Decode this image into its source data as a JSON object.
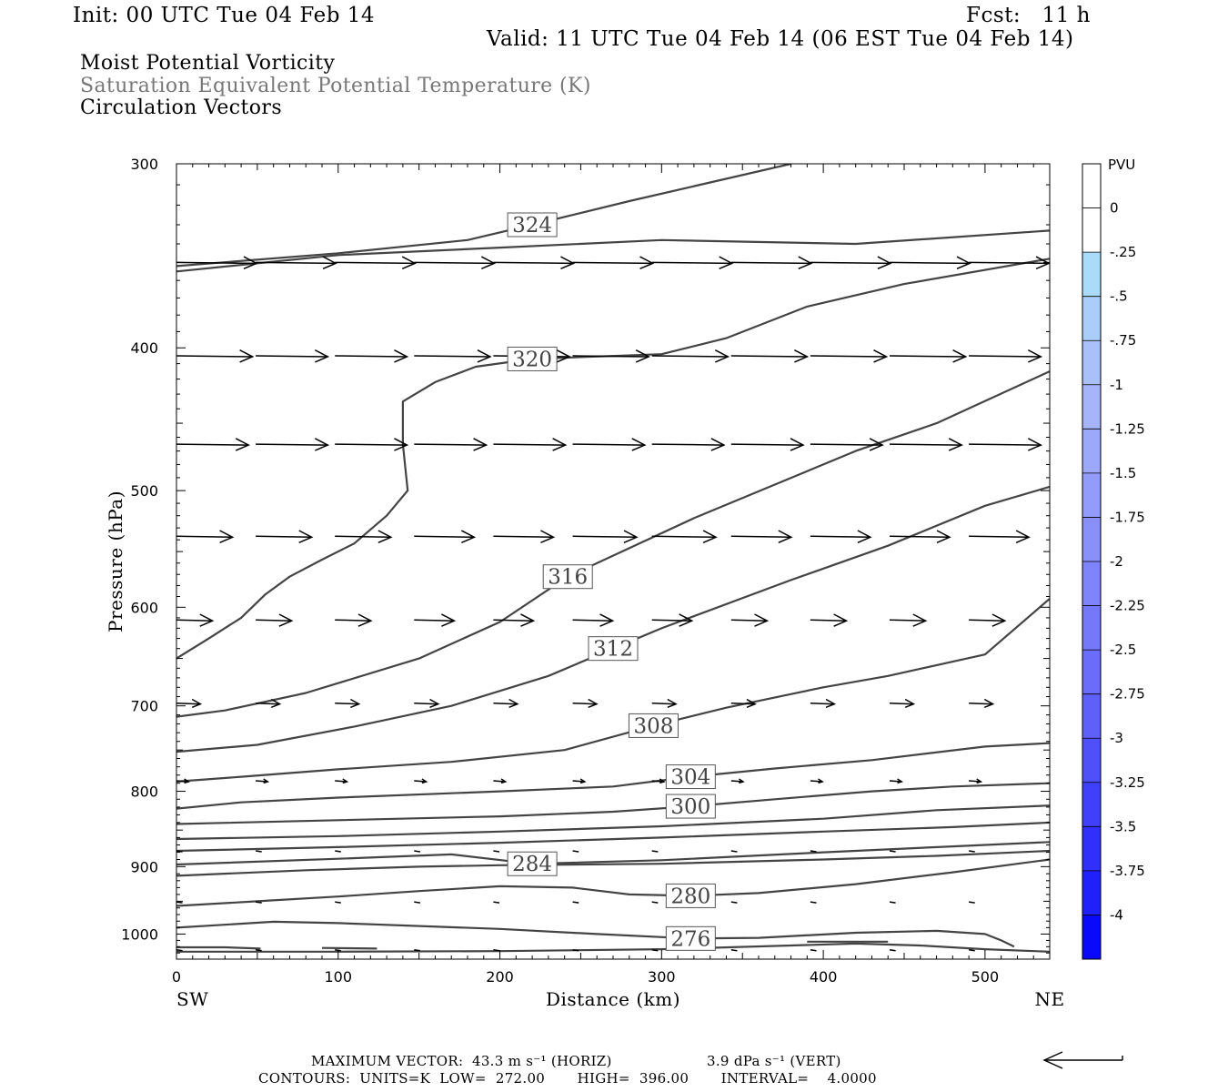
{
  "header": {
    "init": "Init: 00 UTC Tue 04 Feb 14",
    "fcst": "Fcst:   11 h",
    "valid": "Valid: 11 UTC Tue 04 Feb 14 (06 EST Tue 04 Feb 14)",
    "field1": "Moist Potential Vorticity",
    "field2": "Saturation Equivalent Potential Temperature (K)",
    "field3": "Circulation Vectors"
  },
  "footer": {
    "max_vector_label": "MAXIMUM VECTOR:",
    "max_vector_horiz": "43.3 m s⁻¹ (HORIZ)",
    "max_vector_vert": "3.9 dPa s⁻¹ (VERT)",
    "contours_line": "CONTOURS:  UNITS=K  LOW=  272.00       HIGH=  396.00       INTERVAL=    4.0000"
  },
  "colors": {
    "contour": "#444444",
    "arrow": "#000000",
    "frame": "#000000"
  },
  "chart_data": {
    "type": "line",
    "title": "",
    "xlabel": "Distance (km)",
    "ylabel": "Pressure (hPa)",
    "xlim": [
      0,
      540
    ],
    "ylim": [
      1040,
      300
    ],
    "y_scale": "log",
    "x_ticks": [
      0,
      100,
      200,
      300,
      400,
      500
    ],
    "y_ticks": [
      300,
      400,
      500,
      600,
      700,
      800,
      900,
      1000
    ],
    "x_end_labels": {
      "left": "SW",
      "right": "NE"
    },
    "colorbar": {
      "unit": "PVU",
      "labels": [
        "0",
        "-.25",
        "-.5",
        "-.75",
        "-1",
        "-1.25",
        "-1.5",
        "-1.75",
        "-2",
        "-2.25",
        "-2.5",
        "-2.75",
        "-3",
        "-3.25",
        "-3.5",
        "-3.75",
        "-4"
      ],
      "colors": [
        "#ffffff",
        "#ffffff",
        "#aadcfa",
        "#aacdfa",
        "#aac0fa",
        "#a6b4fa",
        "#9ca8fa",
        "#939cfa",
        "#8a90fa",
        "#8084fa",
        "#7678fa",
        "#6b6cfa",
        "#5f5ffa",
        "#5050fa",
        "#4040fa",
        "#3030fa",
        "#2020fa",
        "#0a0afa"
      ]
    },
    "contours": [
      {
        "label": "324",
        "label_at": [
          220,
          330
        ],
        "points": [
          [
            0,
            352
          ],
          [
            100,
            345
          ],
          [
            180,
            338
          ],
          [
            220,
            330
          ],
          [
            280,
            318
          ],
          [
            380,
            300
          ]
        ]
      },
      {
        "label": "",
        "label_at": null,
        "points": [
          [
            0,
            355
          ],
          [
            100,
            346
          ],
          [
            200,
            342
          ],
          [
            300,
            338
          ],
          [
            420,
            340
          ],
          [
            540,
            333
          ]
        ]
      },
      {
        "label": "320",
        "label_at": [
          220,
          407
        ],
        "points": [
          [
            0,
            650
          ],
          [
            20,
            630
          ],
          [
            40,
            610
          ],
          [
            55,
            588
          ],
          [
            70,
            572
          ],
          [
            90,
            557
          ],
          [
            110,
            543
          ],
          [
            130,
            520
          ],
          [
            143,
            500
          ],
          [
            140,
            465
          ],
          [
            140,
            435
          ],
          [
            160,
            422
          ],
          [
            185,
            412
          ],
          [
            220,
            407
          ],
          [
            300,
            404
          ],
          [
            340,
            394
          ],
          [
            390,
            375
          ],
          [
            450,
            362
          ],
          [
            540,
            348
          ]
        ]
      },
      {
        "label": "316",
        "label_at": [
          242,
          572
        ],
        "points": [
          [
            0,
            712
          ],
          [
            30,
            705
          ],
          [
            80,
            686
          ],
          [
            150,
            650
          ],
          [
            200,
            614
          ],
          [
            242,
            572
          ],
          [
            320,
            522
          ],
          [
            420,
            470
          ],
          [
            470,
            450
          ],
          [
            540,
            415
          ]
        ]
      },
      {
        "label": "312",
        "label_at": [
          270,
          640
        ],
        "points": [
          [
            0,
            752
          ],
          [
            50,
            744
          ],
          [
            110,
            723
          ],
          [
            170,
            700
          ],
          [
            230,
            668
          ],
          [
            270,
            640
          ],
          [
            300,
            620
          ],
          [
            380,
            575
          ],
          [
            440,
            545
          ],
          [
            500,
            512
          ],
          [
            540,
            497
          ]
        ]
      },
      {
        "label": "308",
        "label_at": [
          295,
          722
        ],
        "points": [
          [
            0,
            788
          ],
          [
            40,
            782
          ],
          [
            100,
            773
          ],
          [
            170,
            764
          ],
          [
            240,
            750
          ],
          [
            295,
            722
          ],
          [
            340,
            702
          ],
          [
            400,
            680
          ],
          [
            440,
            668
          ],
          [
            500,
            646
          ],
          [
            540,
            592
          ]
        ]
      },
      {
        "label": "304",
        "label_at": [
          318,
          782
        ],
        "points": [
          [
            0,
            822
          ],
          [
            40,
            814
          ],
          [
            100,
            808
          ],
          [
            200,
            800
          ],
          [
            270,
            794
          ],
          [
            318,
            782
          ],
          [
            370,
            772
          ],
          [
            430,
            762
          ],
          [
            500,
            746
          ],
          [
            540,
            742
          ]
        ]
      },
      {
        "label": "300",
        "label_at": [
          318,
          819
        ],
        "points": [
          [
            0,
            842
          ],
          [
            100,
            837
          ],
          [
            200,
            832
          ],
          [
            270,
            826
          ],
          [
            318,
            819
          ],
          [
            370,
            810
          ],
          [
            430,
            800
          ],
          [
            480,
            794
          ],
          [
            540,
            790
          ]
        ]
      },
      {
        "label": "",
        "label_at": null,
        "points": [
          [
            0,
            862
          ],
          [
            100,
            858
          ],
          [
            200,
            852
          ],
          [
            300,
            845
          ],
          [
            400,
            835
          ],
          [
            470,
            824
          ],
          [
            540,
            818
          ]
        ]
      },
      {
        "label": "",
        "label_at": null,
        "points": [
          [
            0,
            878
          ],
          [
            100,
            873
          ],
          [
            200,
            867
          ],
          [
            300,
            860
          ],
          [
            400,
            852
          ],
          [
            480,
            846
          ],
          [
            540,
            840
          ]
        ]
      },
      {
        "label": "284",
        "label_at": [
          220,
          896
        ],
        "points": [
          [
            0,
            897
          ],
          [
            100,
            889
          ],
          [
            170,
            883
          ],
          [
            220,
            896
          ],
          [
            300,
            891
          ],
          [
            400,
            880
          ],
          [
            480,
            872
          ],
          [
            540,
            866
          ]
        ]
      },
      {
        "label": "",
        "label_at": null,
        "points": [
          [
            0,
            913
          ],
          [
            80,
            905
          ],
          [
            150,
            900
          ],
          [
            200,
            898
          ],
          [
            300,
            896
          ],
          [
            400,
            890
          ],
          [
            470,
            885
          ],
          [
            540,
            878
          ]
        ]
      },
      {
        "label": "280",
        "label_at": [
          318,
          942
        ],
        "points": [
          [
            0,
            957
          ],
          [
            50,
            950
          ],
          [
            100,
            943
          ],
          [
            150,
            935
          ],
          [
            200,
            928
          ],
          [
            245,
            930
          ],
          [
            280,
            940
          ],
          [
            318,
            942
          ],
          [
            360,
            938
          ],
          [
            420,
            925
          ],
          [
            480,
            908
          ],
          [
            540,
            890
          ]
        ]
      },
      {
        "label": "276",
        "label_at": [
          318,
          1007
        ],
        "points": [
          [
            0,
            990
          ],
          [
            60,
            981
          ],
          [
            100,
            983
          ],
          [
            200,
            992
          ],
          [
            260,
            1000
          ],
          [
            318,
            1007
          ],
          [
            360,
            1006
          ],
          [
            420,
            998
          ],
          [
            470,
            995
          ],
          [
            500,
            1000
          ],
          [
            510,
            1010
          ],
          [
            518,
            1020
          ]
        ]
      },
      {
        "label": "",
        "label_at": null,
        "points": [
          [
            0,
            1021
          ],
          [
            30,
            1021
          ],
          [
            52,
            1023
          ]
        ]
      },
      {
        "label": "",
        "label_at": null,
        "points": [
          [
            90,
            1022
          ],
          [
            124,
            1023
          ]
        ]
      },
      {
        "label": "",
        "label_at": null,
        "points": [
          [
            390,
            1012
          ],
          [
            440,
            1012
          ]
        ]
      },
      {
        "label": "",
        "label_at": null,
        "points": [
          [
            0,
            1028
          ],
          [
            100,
            1028
          ],
          [
            200,
            1027
          ],
          [
            300,
            1024
          ],
          [
            380,
            1018
          ],
          [
            420,
            1015
          ],
          [
            460,
            1018
          ],
          [
            500,
            1024
          ],
          [
            540,
            1028
          ]
        ]
      }
    ],
    "vectors": {
      "x": [
        0,
        49,
        98,
        147,
        196,
        245,
        294,
        343,
        392,
        441,
        490
      ],
      "rows": [
        {
          "p": 350,
          "u": [
            40,
            40,
            40,
            40,
            40,
            40,
            40,
            40,
            40,
            40,
            40
          ],
          "w": [
            0,
            0,
            0,
            0,
            0,
            0,
            0,
            0,
            0,
            0,
            0
          ]
        },
        {
          "p": 405,
          "u": [
            38,
            36,
            36,
            38,
            38,
            38,
            38,
            38,
            38,
            38,
            36
          ],
          "w": [
            0,
            0,
            0,
            0,
            0,
            0,
            0,
            0,
            0,
            0,
            0
          ]
        },
        {
          "p": 465,
          "u": [
            36,
            36,
            36,
            36,
            36,
            36,
            36,
            36,
            36,
            36,
            36
          ],
          "w": [
            0,
            0,
            0,
            0,
            0,
            0,
            0,
            0,
            0,
            0,
            0
          ]
        },
        {
          "p": 537,
          "u": [
            28,
            28,
            28,
            30,
            30,
            32,
            32,
            30,
            30,
            30,
            30
          ],
          "w": [
            0,
            0,
            0,
            0,
            0,
            0,
            0,
            0,
            0,
            0,
            0
          ]
        },
        {
          "p": 612,
          "u": [
            18,
            18,
            18,
            20,
            20,
            20,
            20,
            18,
            18,
            18,
            18
          ],
          "w": [
            0,
            0,
            0,
            0,
            0,
            0,
            0,
            0,
            0,
            0,
            0
          ]
        },
        {
          "p": 697,
          "u": [
            12,
            12,
            12,
            12,
            12,
            12,
            12,
            12,
            12,
            12,
            12
          ],
          "w": [
            0,
            0,
            0,
            0,
            0,
            0,
            0,
            0,
            0,
            0,
            0
          ]
        },
        {
          "p": 787,
          "u": [
            6,
            6,
            6,
            6,
            6,
            6,
            6,
            6,
            6,
            6,
            6
          ],
          "w": [
            0,
            0,
            0,
            0,
            0,
            0,
            0,
            0,
            0,
            0,
            0
          ]
        },
        {
          "p": 878,
          "u": [
            3,
            3,
            3,
            3,
            3,
            3,
            3,
            3,
            3,
            3,
            3
          ],
          "w": [
            0,
            0,
            0,
            0,
            0,
            0,
            0,
            0,
            0,
            0,
            0
          ]
        },
        {
          "p": 951,
          "u": [
            3,
            3,
            3,
            3,
            3,
            3,
            3,
            3,
            3,
            3,
            3
          ],
          "w": [
            0,
            0,
            0,
            0,
            0,
            0,
            0,
            0,
            0,
            0,
            0
          ]
        },
        {
          "p": 1025,
          "u": [
            3,
            3,
            3,
            3,
            3,
            3,
            3,
            3,
            3,
            3,
            3
          ],
          "w": [
            0,
            0,
            0,
            0,
            0,
            0,
            0,
            0,
            0,
            0,
            0
          ]
        }
      ]
    }
  }
}
